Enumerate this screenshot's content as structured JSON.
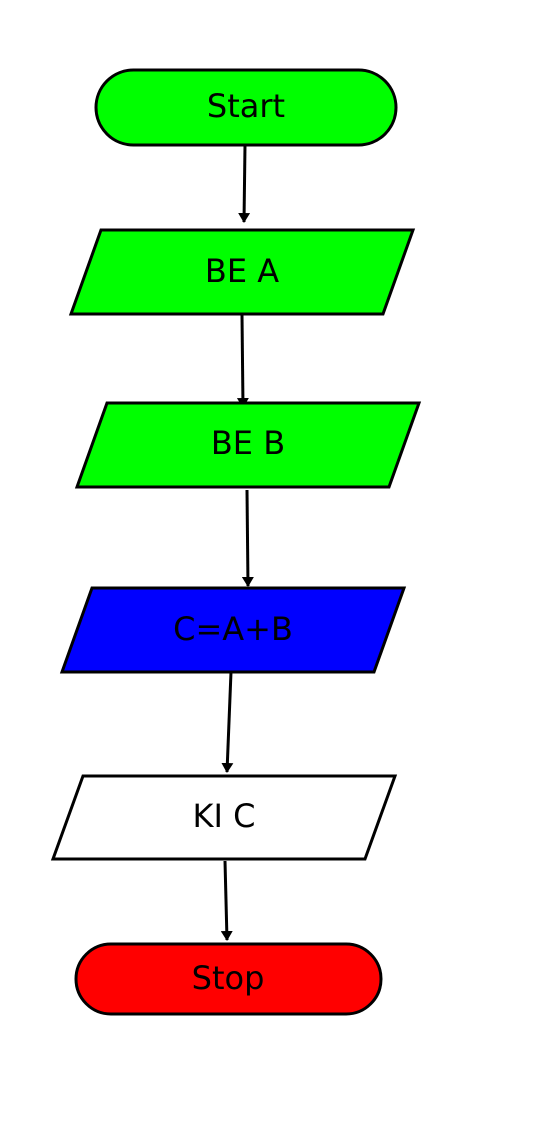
{
  "colors": {
    "green": "#00ff00",
    "blue": "#0000ff",
    "white": "#ffffff",
    "red": "#ff0000",
    "stroke": "#000000"
  },
  "nodes": [
    {
      "id": "start",
      "shape": "terminal",
      "label": "Start",
      "fill": "#00ff00"
    },
    {
      "id": "input-a",
      "shape": "parallelogram",
      "label": "BE A",
      "fill": "#00ff00"
    },
    {
      "id": "input-b",
      "shape": "parallelogram",
      "label": "BE B",
      "fill": "#00ff00"
    },
    {
      "id": "compute-c",
      "shape": "parallelogram",
      "label": "C=A+B",
      "fill": "#0000ff"
    },
    {
      "id": "output-c",
      "shape": "parallelogram",
      "label": "KI C",
      "fill": "#ffffff"
    },
    {
      "id": "stop",
      "shape": "terminal",
      "label": "Stop",
      "fill": "#ff0000"
    }
  ],
  "edges": [
    {
      "from": "start",
      "to": "input-a"
    },
    {
      "from": "input-a",
      "to": "input-b"
    },
    {
      "from": "input-b",
      "to": "compute-c"
    },
    {
      "from": "compute-c",
      "to": "output-c"
    },
    {
      "from": "output-c",
      "to": "stop"
    }
  ]
}
